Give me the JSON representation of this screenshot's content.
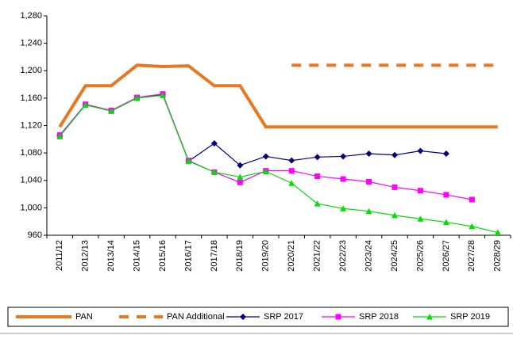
{
  "chart_data": {
    "type": "line",
    "categories": [
      "2011/12",
      "2012/13",
      "2013/14",
      "2014/15",
      "2015/16",
      "2016/17",
      "2017/18",
      "2018/19",
      "2019/20",
      "2020/21",
      "2021/22",
      "2022/23",
      "2023/24",
      "2024/25",
      "2025/26",
      "2026/27",
      "2027/28",
      "2028/29"
    ],
    "series": [
      {
        "name": "PAN",
        "color": "#e87722",
        "style": "solid",
        "marker": "none",
        "values": [
          1118,
          1178,
          1178,
          1208,
          1206,
          1207,
          1178,
          1178,
          1118,
          1118,
          1118,
          1118,
          1118,
          1118,
          1118,
          1118,
          1118,
          1118
        ]
      },
      {
        "name": "PAN Additional",
        "color": "#e87722",
        "style": "dashed",
        "marker": "none",
        "values": [
          null,
          null,
          null,
          null,
          null,
          null,
          null,
          null,
          null,
          1208,
          1208,
          1208,
          1208,
          1208,
          1208,
          1208,
          1208,
          1208
        ]
      },
      {
        "name": "SRP 2017",
        "color": "#000080",
        "style": "solid",
        "marker": "diamond",
        "values": [
          1105,
          1150,
          1142,
          1160,
          1165,
          1068,
          1094,
          1062,
          1075,
          1069,
          1074,
          1075,
          1079,
          1077,
          1083,
          1079,
          null,
          null
        ]
      },
      {
        "name": "SRP 2018",
        "color": "#ff00ff",
        "style": "solid",
        "marker": "square",
        "values": [
          1106,
          1151,
          1142,
          1161,
          1166,
          1069,
          1052,
          1037,
          1054,
          1054,
          1046,
          1042,
          1038,
          1030,
          1025,
          1019,
          1012,
          null
        ]
      },
      {
        "name": "SRP 2019",
        "color": "#00e000",
        "style": "solid",
        "marker": "triangle",
        "values": [
          1104,
          1150,
          1141,
          1160,
          1164,
          1068,
          1052,
          1045,
          1053,
          1036,
          1006,
          999,
          995,
          989,
          984,
          979,
          973,
          964
        ]
      }
    ],
    "ylim": [
      960,
      1280
    ],
    "yticks": [
      960,
      {
        "value": 1000,
        "label": "1,000"
      },
      {
        "value": 1040,
        "label": "1,040"
      },
      {
        "value": 1080,
        "label": "1,080"
      },
      {
        "value": 1120,
        "label": "1,120"
      },
      {
        "value": 1160,
        "label": "1,160"
      },
      {
        "value": 1200,
        "label": "1,200"
      },
      {
        "value": 1240,
        "label": "1,240"
      },
      {
        "value": 1280,
        "label": "1,280"
      }
    ],
    "grid": false,
    "legend": "bottom"
  }
}
